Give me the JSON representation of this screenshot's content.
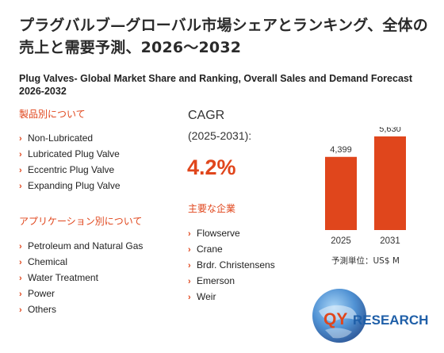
{
  "title_jp": "プラグバルブ—グローバル市場シェアとランキング、全体の売上と需要予測、2026〜2032",
  "title_en": "Plug Valves- Global Market Share and Ranking, Overall Sales and Demand Forecast 2026-2032",
  "by_type": {
    "heading": "製品別について",
    "items": [
      "Non-Lubricated",
      "Lubricated Plug Valve",
      "Eccentric Plug Valve",
      "Expanding Plug Valve"
    ]
  },
  "by_application": {
    "heading": "アプリケーション別について",
    "items": [
      "Petroleum and Natural Gas",
      "Chemical",
      "Water Treatment",
      "Power",
      "Others"
    ]
  },
  "cagr": {
    "label": "CAGR",
    "period": "(2025-2031):",
    "value": "4.2%"
  },
  "companies": {
    "heading": "主要な企業",
    "items": [
      "Flowserve",
      "Crane",
      "Brdr. Christensens",
      "Emerson",
      "Weir"
    ]
  },
  "chart_data": {
    "type": "bar",
    "categories": [
      "2025",
      "2031"
    ],
    "values": [
      4399,
      5630
    ],
    "value_labels": [
      "4,399",
      "5,630"
    ],
    "ylim": [
      0,
      6200
    ],
    "bar_color": "#e0461c",
    "unit_label": "予測単位：US$ M"
  },
  "logo": {
    "text_qy": "QY",
    "text_research": "RESEARCH",
    "brand_color": "#e0461c",
    "accent_color": "#1f5fa8"
  }
}
